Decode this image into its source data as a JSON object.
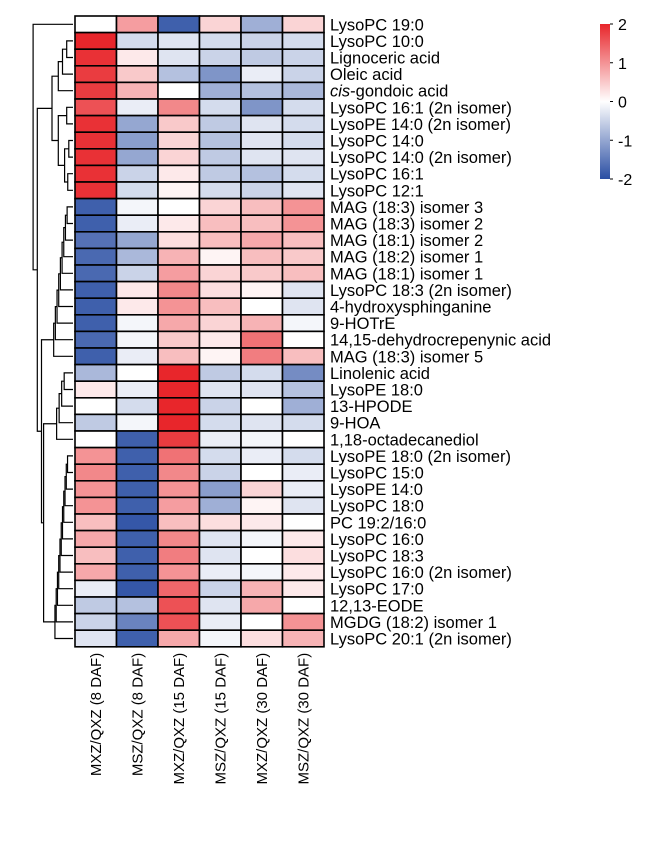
{
  "chart_data": {
    "type": "heatmap",
    "title": "",
    "columns": [
      "MXZ/QXZ (8 DAF)",
      "MSZ/QXZ (8 DAF)",
      "MXZ/QXZ (15 DAF)",
      "MSZ/QXZ (15 DAF)",
      "MXZ/QXZ (30 DAF)",
      "MSZ/QXZ (30 DAF)"
    ],
    "rows": [
      {
        "label": "LysoPC 19:0",
        "italic_prefix": "",
        "label_rest": "",
        "values": [
          0.0,
          0.9,
          -1.8,
          0.4,
          -0.9,
          0.4
        ]
      },
      {
        "label": "LysoPC 10:0",
        "italic_prefix": "",
        "label_rest": "",
        "values": [
          2.0,
          -0.4,
          -0.3,
          -0.4,
          -0.5,
          -0.4
        ]
      },
      {
        "label": "Lignoceric acid",
        "italic_prefix": "",
        "label_rest": "",
        "values": [
          1.9,
          0.2,
          -0.3,
          -0.5,
          -0.6,
          -0.5
        ]
      },
      {
        "label": "Oleic acid",
        "italic_prefix": "",
        "label_rest": "",
        "values": [
          1.8,
          0.5,
          -0.7,
          -1.2,
          -0.2,
          -0.5
        ]
      },
      {
        "label": "cis-gondoic acid",
        "italic_prefix": "cis",
        "label_rest": "-gondoic acid",
        "values": [
          1.8,
          0.7,
          0.0,
          -0.9,
          -0.7,
          -0.8
        ]
      },
      {
        "label": "LysoPC 16:1 (2n isomer)",
        "italic_prefix": "",
        "label_rest": "",
        "values": [
          1.6,
          -0.2,
          1.1,
          -0.4,
          -1.2,
          -0.4
        ]
      },
      {
        "label": "LysoPE 14:0  (2n isomer)",
        "italic_prefix": "",
        "label_rest": "",
        "values": [
          1.9,
          -1.0,
          0.5,
          -0.6,
          -0.3,
          -0.4
        ]
      },
      {
        "label": "LysoPC 14:0",
        "italic_prefix": "",
        "label_rest": "",
        "values": [
          1.9,
          -1.1,
          0.4,
          -0.7,
          -0.3,
          -0.4
        ]
      },
      {
        "label": "LysoPC 14:0 (2n isomer)",
        "italic_prefix": "",
        "label_rest": "",
        "values": [
          1.9,
          -1.0,
          0.4,
          -0.6,
          -0.3,
          -0.3
        ]
      },
      {
        "label": "LysoPC 16:1",
        "italic_prefix": "",
        "label_rest": "",
        "values": [
          1.9,
          -0.5,
          0.2,
          -0.6,
          -0.7,
          -0.4
        ]
      },
      {
        "label": "LysoPC 12:1",
        "italic_prefix": "",
        "label_rest": "",
        "values": [
          1.9,
          -0.4,
          0.1,
          -0.4,
          -0.5,
          -0.3
        ]
      },
      {
        "label": "MAG (18:3) isomer 3",
        "italic_prefix": "",
        "label_rest": "",
        "values": [
          -1.8,
          -0.1,
          0.0,
          0.4,
          0.6,
          1.0
        ]
      },
      {
        "label": "MAG (18:3) isomer 2",
        "italic_prefix": "",
        "label_rest": "",
        "values": [
          -1.8,
          -0.2,
          0.2,
          0.6,
          0.6,
          1.0
        ]
      },
      {
        "label": "MAG (18:1) isomer 2",
        "italic_prefix": "",
        "label_rest": "",
        "values": [
          -1.6,
          -1.0,
          0.3,
          0.6,
          0.8,
          0.6
        ]
      },
      {
        "label": "MAG (18:2) isomer 1",
        "italic_prefix": "",
        "label_rest": "",
        "values": [
          -1.7,
          -0.8,
          0.7,
          0.1,
          0.6,
          0.5
        ]
      },
      {
        "label": "MAG (18:1) isomer 1",
        "italic_prefix": "",
        "label_rest": "",
        "values": [
          -1.7,
          -0.5,
          0.9,
          0.4,
          0.5,
          0.6
        ]
      },
      {
        "label": "LysoPC 18:3 (2n isomer)",
        "italic_prefix": "",
        "label_rest": "",
        "values": [
          -1.8,
          0.2,
          1.1,
          0.3,
          0.1,
          -0.3
        ]
      },
      {
        "label": "4-hydroxysphinganine",
        "italic_prefix": "",
        "label_rest": "",
        "values": [
          -1.8,
          0.2,
          1.0,
          0.6,
          0.0,
          -0.3
        ]
      },
      {
        "label": "9-HOTrE",
        "italic_prefix": "",
        "label_rest": "",
        "values": [
          -1.8,
          -0.1,
          0.8,
          0.4,
          0.7,
          -0.1
        ]
      },
      {
        "label": "14,15-dehydrocrepenynic acid",
        "italic_prefix": "",
        "label_rest": "",
        "values": [
          -1.7,
          -0.1,
          0.5,
          0.2,
          1.3,
          0.0
        ]
      },
      {
        "label": "MAG (18:3) isomer 5",
        "italic_prefix": "",
        "label_rest": "",
        "values": [
          -1.8,
          -0.2,
          0.6,
          0.1,
          1.2,
          0.6
        ]
      },
      {
        "label": "Linolenic acid",
        "italic_prefix": "",
        "label_rest": "",
        "values": [
          -0.8,
          0.0,
          2.0,
          -0.6,
          -0.4,
          -1.3
        ]
      },
      {
        "label": "LysoPE 18:0",
        "italic_prefix": "",
        "label_rest": "",
        "values": [
          0.2,
          -0.2,
          2.0,
          -0.3,
          -0.3,
          -0.7
        ]
      },
      {
        "label": "13-HPODE",
        "italic_prefix": "",
        "label_rest": "",
        "values": [
          0.0,
          -0.4,
          2.0,
          -0.5,
          0.0,
          -0.9
        ]
      },
      {
        "label": "9-HOA",
        "italic_prefix": "",
        "label_rest": "",
        "values": [
          -0.6,
          -0.1,
          2.0,
          -0.4,
          -0.3,
          -0.4
        ]
      },
      {
        "label": "1,18-octadecanediol",
        "italic_prefix": "",
        "label_rest": "",
        "values": [
          0.0,
          -1.8,
          1.8,
          -0.2,
          -0.1,
          0.0
        ]
      },
      {
        "label": "LysoPE 18:0 (2n isomer)",
        "italic_prefix": "",
        "label_rest": "",
        "values": [
          1.0,
          -1.8,
          1.3,
          -0.4,
          -0.2,
          -0.4
        ]
      },
      {
        "label": "LysoPC 15:0",
        "italic_prefix": "",
        "label_rest": "",
        "values": [
          1.1,
          -1.8,
          1.1,
          -0.5,
          0.0,
          -0.2
        ]
      },
      {
        "label": "LysoPE 14:0",
        "italic_prefix": "",
        "label_rest": "",
        "values": [
          1.0,
          -1.8,
          1.0,
          -1.1,
          0.4,
          -0.2
        ]
      },
      {
        "label": "LysoPC 18:0",
        "italic_prefix": "",
        "label_rest": "",
        "values": [
          1.0,
          -1.8,
          0.9,
          -0.9,
          0.1,
          -0.3
        ]
      },
      {
        "label": "PC 19:2/16:0",
        "italic_prefix": "",
        "label_rest": "",
        "values": [
          0.6,
          -1.9,
          0.6,
          0.3,
          0.2,
          0.0
        ]
      },
      {
        "label": "LysoPC 16:0",
        "italic_prefix": "",
        "label_rest": "",
        "values": [
          0.8,
          -1.8,
          1.1,
          -0.3,
          -0.1,
          0.2
        ]
      },
      {
        "label": "LysoPC 18:3",
        "italic_prefix": "",
        "label_rest": "",
        "values": [
          0.6,
          -1.8,
          1.2,
          -0.3,
          0.0,
          0.3
        ]
      },
      {
        "label": "LysoPC 16:0 (2n isomer)",
        "italic_prefix": "",
        "label_rest": "",
        "values": [
          0.8,
          -1.8,
          1.0,
          -0.2,
          -0.1,
          0.2
        ]
      },
      {
        "label": "LysoPC 17:0",
        "italic_prefix": "",
        "label_rest": "",
        "values": [
          -0.2,
          -1.9,
          1.4,
          -0.5,
          0.7,
          0.2
        ]
      },
      {
        "label": "12,13-EODE",
        "italic_prefix": "",
        "label_rest": "",
        "values": [
          -0.6,
          -0.7,
          1.6,
          -0.3,
          0.8,
          0.0
        ]
      },
      {
        "label": "MGDG (18:2) isomer 1",
        "italic_prefix": "",
        "label_rest": "",
        "values": [
          -0.5,
          -1.4,
          1.6,
          -0.2,
          0.0,
          1.0
        ]
      },
      {
        "label": "LysoPC 20:1 (2n isomer)",
        "italic_prefix": "",
        "label_rest": "",
        "values": [
          -0.3,
          -1.8,
          0.8,
          -0.1,
          0.3,
          0.7
        ]
      }
    ],
    "color_scale": {
      "min": -2,
      "max": 2,
      "low_color": "#2a4ea3",
      "mid_color": "#ffffff",
      "high_color": "#e8262b",
      "ticks": [
        2,
        1,
        0,
        -1,
        -2
      ],
      "tick_labels": [
        "2",
        "1",
        "0",
        "-1",
        "-2"
      ]
    },
    "row_dendrogram": true,
    "legend_position": "top-right"
  }
}
